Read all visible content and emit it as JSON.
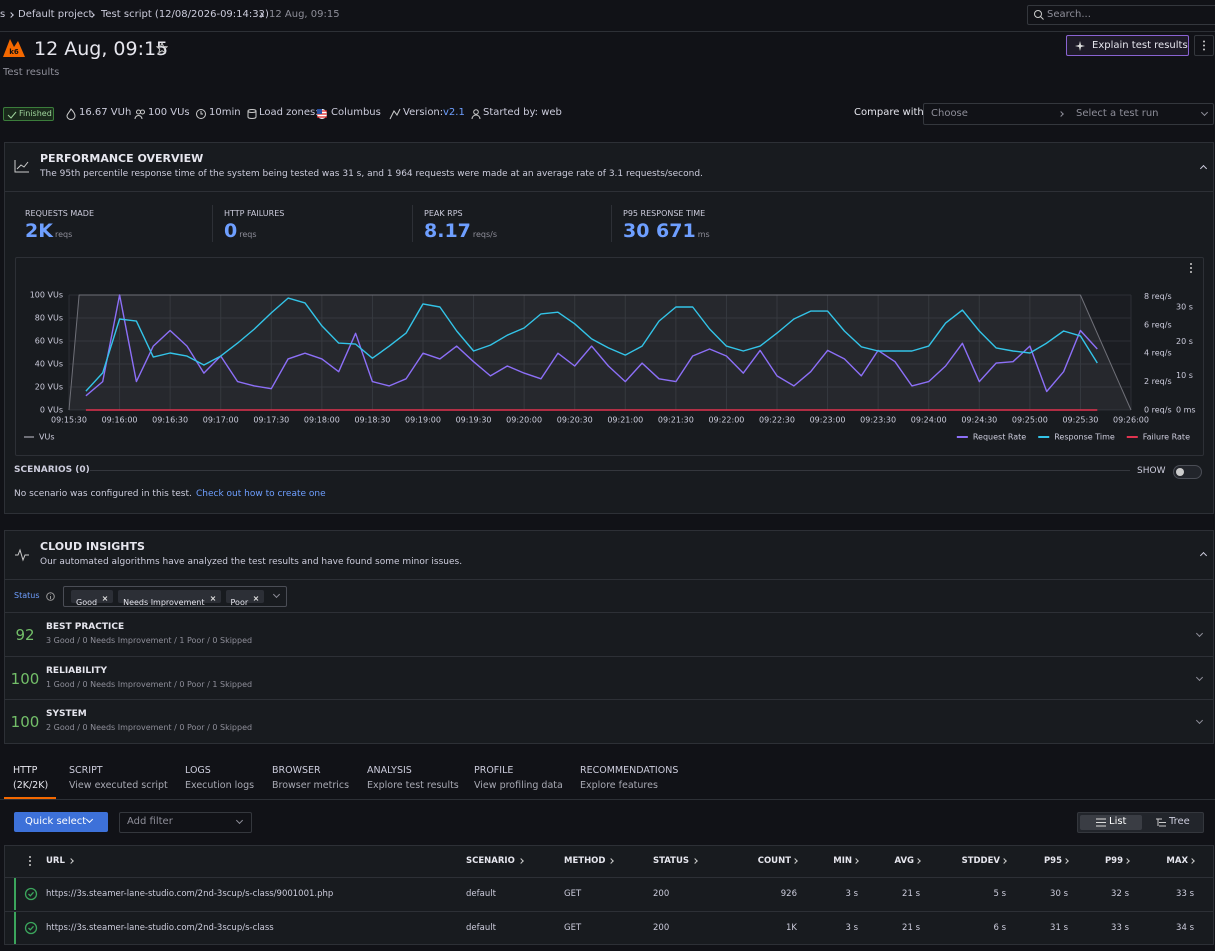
{
  "breadcrumb": [
    "s",
    "Default project",
    "Test script (12/08/2026-09:14:32)",
    "12 Aug, 09:15"
  ],
  "search": "Search...",
  "header": {
    "title": "12 Aug, 09:15",
    "subtitle": "Test results",
    "explain_button": "Explain test results"
  },
  "meta": {
    "status": "Finished",
    "vuh": "16.67 VUh",
    "vus": "100 VUs",
    "duration": "10min",
    "load_zones_label": "Load zones:",
    "load_zone": "Columbus",
    "version_label": "Version:",
    "version": "v2.1",
    "started_by": "Started by: web"
  },
  "compare": {
    "label": "Compare with",
    "choose": "Choose",
    "select": "Select a test run"
  },
  "performance": {
    "title": "PERFORMANCE OVERVIEW",
    "description": "The 95th percentile response time of the system being tested was 31 s, and 1 964 requests were made at an average rate of 3.1 requests/second.",
    "stats": [
      {
        "label": "REQUESTS MADE",
        "value": "2K",
        "unit": "reqs"
      },
      {
        "label": "HTTP FAILURES",
        "value": "0",
        "unit": "reqs"
      },
      {
        "label": "PEAK RPS",
        "value": "8.17",
        "unit": "reqs/s"
      },
      {
        "label": "P95 RESPONSE TIME",
        "value": "30 671",
        "unit": "ms"
      }
    ]
  },
  "chart_data": {
    "type": "line",
    "x": [
      "09:15:40",
      "09:15:50",
      "09:16:00",
      "09:16:10",
      "09:16:20",
      "09:16:30",
      "09:16:40",
      "09:16:50",
      "09:17:00",
      "09:17:10",
      "09:17:20",
      "09:17:30",
      "09:17:40",
      "09:17:50",
      "09:18:00",
      "09:18:10",
      "09:18:20",
      "09:18:30",
      "09:18:40",
      "09:18:50",
      "09:19:00",
      "09:19:10",
      "09:19:20",
      "09:19:30",
      "09:19:40",
      "09:19:50",
      "09:20:00",
      "09:20:10",
      "09:20:20",
      "09:20:30",
      "09:20:40",
      "09:20:50",
      "09:21:00",
      "09:21:10",
      "09:21:20",
      "09:21:30",
      "09:21:40",
      "09:21:50",
      "09:22:00",
      "09:22:10",
      "09:22:20",
      "09:22:30",
      "09:22:40",
      "09:22:50",
      "09:23:00",
      "09:23:10",
      "09:23:20",
      "09:23:30",
      "09:23:40",
      "09:23:50",
      "09:24:00",
      "09:24:10",
      "09:24:20",
      "09:24:30",
      "09:24:40",
      "09:24:50",
      "09:25:00",
      "09:25:10",
      "09:25:20",
      "09:25:30",
      "09:25:40"
    ],
    "xlim": [
      "09:15:30",
      "09:26:00"
    ],
    "xticks": [
      "09:15:30",
      "09:16:00",
      "09:16:30",
      "09:17:00",
      "09:17:30",
      "09:18:00",
      "09:18:30",
      "09:19:00",
      "09:19:30",
      "09:20:00",
      "09:20:30",
      "09:21:00",
      "09:21:30",
      "09:22:00",
      "09:22:30",
      "09:23:00",
      "09:23:30",
      "09:24:00",
      "09:24:30",
      "09:25:00",
      "09:25:30",
      "09:26:00"
    ],
    "ylim": [
      0,
      100
    ],
    "yticks": [
      {
        "value": 0,
        "label": "0 VUs"
      },
      {
        "value": 20,
        "label": "20 VUs"
      },
      {
        "value": 40,
        "label": "40 VUs"
      },
      {
        "value": 60,
        "label": "60 VUs"
      },
      {
        "value": 80,
        "label": "80 VUs"
      },
      {
        "value": 100,
        "label": "100 VUs"
      }
    ],
    "y2lim": [
      0,
      8.1
    ],
    "y2ticks": [
      {
        "value": 0,
        "label": "0 req/s"
      },
      {
        "value": 2,
        "label": "2 req/s"
      },
      {
        "value": 4,
        "label": "4 req/s"
      },
      {
        "value": 6,
        "label": "6 req/s"
      },
      {
        "value": 8,
        "label": "8 req/s"
      }
    ],
    "y3lim": [
      0,
      33.5
    ],
    "y3ticks": [
      {
        "value": 0,
        "label": "0 ms"
      },
      {
        "value": 10,
        "label": "10 s"
      },
      {
        "value": 20,
        "label": "20 s"
      },
      {
        "value": 30,
        "label": "30 s"
      }
    ],
    "grid": true,
    "legend": "bottom",
    "series": [
      {
        "name": "VUs",
        "color": "#6f7078",
        "x": [
          "09:15:30",
          "09:15:36",
          "09:25:30",
          "09:26:00"
        ],
        "values": [
          0,
          100,
          100,
          0
        ]
      },
      {
        "name": "Request Rate",
        "color": "#8c6ff7",
        "axis": "y2",
        "values": [
          1.0,
          2.0,
          8.1,
          2.0,
          4.5,
          5.6,
          4.5,
          2.6,
          3.8,
          2.0,
          1.7,
          1.5,
          3.6,
          4.0,
          3.6,
          2.7,
          5.4,
          2.0,
          1.7,
          2.2,
          4.0,
          3.6,
          4.5,
          3.4,
          2.4,
          3.1,
          2.6,
          2.2,
          4.0,
          3.1,
          4.5,
          3.1,
          2.0,
          3.3,
          2.2,
          2.0,
          3.8,
          4.3,
          3.8,
          2.6,
          4.2,
          2.4,
          1.7,
          2.7,
          4.2,
          3.6,
          2.4,
          4.2,
          3.4,
          1.7,
          2.0,
          3.1,
          4.7,
          2.0,
          3.3,
          3.4,
          4.5,
          1.3,
          2.7,
          5.6,
          4.3
        ]
      },
      {
        "name": "Response Time",
        "color": "#33c4e8",
        "axis": "y3",
        "values": [
          5.5,
          10.8,
          26.5,
          25.9,
          15.4,
          16.6,
          15.7,
          13.1,
          15.7,
          19.5,
          23.6,
          28.3,
          32.6,
          31.2,
          24.5,
          19.5,
          19.2,
          15.1,
          18.6,
          22.4,
          30.9,
          30.0,
          23.0,
          17.2,
          18.9,
          21.8,
          23.9,
          28.0,
          28.5,
          25.1,
          20.7,
          18.1,
          16.0,
          18.6,
          25.9,
          30.0,
          30.0,
          23.6,
          18.6,
          17.2,
          18.6,
          22.4,
          26.5,
          28.8,
          28.8,
          23.0,
          18.4,
          17.2,
          17.2,
          17.2,
          18.6,
          25.3,
          29.1,
          23.0,
          18.1,
          17.2,
          16.6,
          19.5,
          23.0,
          21.6,
          13.7
        ]
      },
      {
        "name": "Failure Rate",
        "color": "#e0334f",
        "axis": "y2",
        "values": [
          0,
          0,
          0,
          0,
          0,
          0,
          0,
          0,
          0,
          0,
          0,
          0,
          0,
          0,
          0,
          0,
          0,
          0,
          0,
          0,
          0,
          0,
          0,
          0,
          0,
          0,
          0,
          0,
          0,
          0,
          0,
          0,
          0,
          0,
          0,
          0,
          0,
          0,
          0,
          0,
          0,
          0,
          0,
          0,
          0,
          0,
          0,
          0,
          0,
          0,
          0,
          0,
          0,
          0,
          0,
          0,
          0,
          0,
          0,
          0,
          0
        ]
      }
    ]
  },
  "scenarios": {
    "title": "SCENARIOS (0)",
    "show": "SHOW",
    "message": "No scenario was configured in this test.",
    "link": "Check out how to create one"
  },
  "insights": {
    "title": "CLOUD INSIGHTS",
    "description": "Our automated algorithms have analyzed the test results and have found some minor issues.",
    "status_label": "Status",
    "filters": [
      "Good",
      "Needs Improvement",
      "Poor"
    ],
    "items": [
      {
        "score": 92,
        "title": "BEST PRACTICE",
        "summary": "3 Good / 0 Needs Improvement / 1 Poor / 0 Skipped"
      },
      {
        "score": 100,
        "title": "RELIABILITY",
        "summary": "1 Good / 0 Needs Improvement / 0 Poor / 1 Skipped"
      },
      {
        "score": 100,
        "title": "SYSTEM",
        "summary": "2 Good / 0 Needs Improvement / 0 Poor / 0 Skipped"
      }
    ]
  },
  "tabs": [
    {
      "title": "HTTP",
      "subtitle": "(2K/2K)"
    },
    {
      "title": "SCRIPT",
      "subtitle": "View executed script"
    },
    {
      "title": "LOGS",
      "subtitle": "Execution logs"
    },
    {
      "title": "BROWSER",
      "subtitle": "Browser metrics"
    },
    {
      "title": "ANALYSIS",
      "subtitle": "Explore test results"
    },
    {
      "title": "PROFILE",
      "subtitle": "View profiling data"
    },
    {
      "title": "RECOMMENDATIONS",
      "subtitle": "Explore features"
    }
  ],
  "toolbar": {
    "quick_select": "Quick select",
    "add_filter": "Add filter",
    "list": "List",
    "tree": "Tree"
  },
  "table": {
    "columns": [
      "URL",
      "SCENARIO",
      "METHOD",
      "STATUS",
      "COUNT",
      "MIN",
      "AVG",
      "STDDEV",
      "P95",
      "P99",
      "MAX"
    ],
    "rows": [
      [
        "https://3s.steamer-lane-studio.com/2nd-3scup/s-class/9001001.php",
        "default",
        "GET",
        "200",
        "926",
        "3 s",
        "21 s",
        "5 s",
        "30 s",
        "32 s",
        "33 s"
      ],
      [
        "https://3s.steamer-lane-studio.com/2nd-3scup/s-class",
        "default",
        "GET",
        "200",
        "1K",
        "3 s",
        "21 s",
        "6 s",
        "31 s",
        "33 s",
        "34 s"
      ]
    ]
  }
}
